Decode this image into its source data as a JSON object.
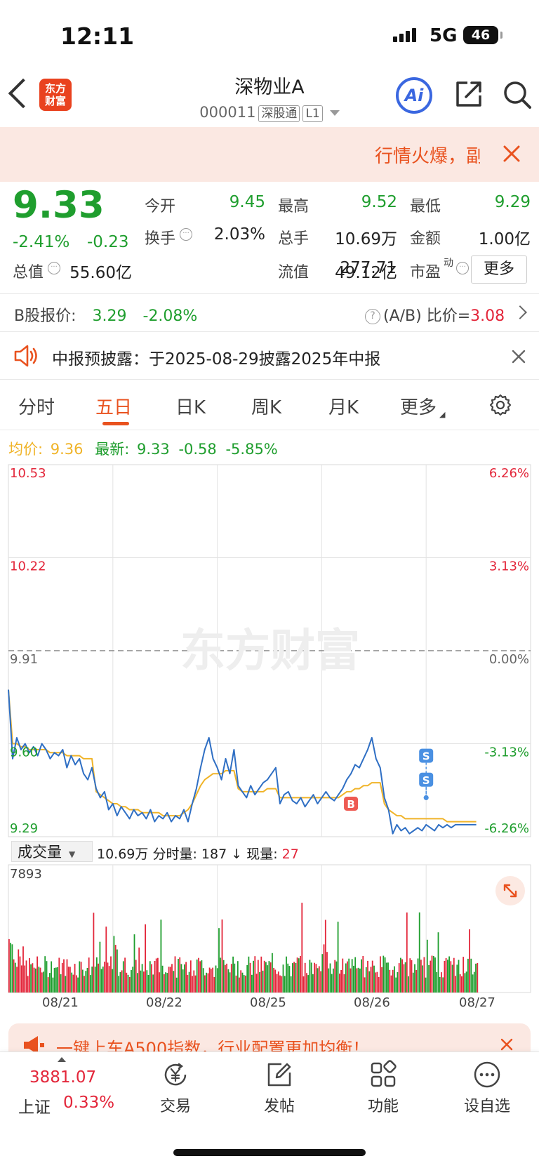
{
  "status_bar": {
    "time": "12:11",
    "network": "5G",
    "battery": "46"
  },
  "header": {
    "logo": "东方财富",
    "title": "深物业A",
    "code": "000011",
    "tag1": "深股通",
    "tag2": "L1",
    "ai_label": "Ai"
  },
  "hot_banner": {
    "text": "行情火爆，副"
  },
  "quote": {
    "price": "9.33",
    "pct": "-2.41%",
    "change": "-0.23",
    "fields": [
      {
        "label": "今开",
        "value": "9.45",
        "color": "#1f9e2e"
      },
      {
        "label": "最高",
        "value": "9.52",
        "color": "#1f9e2e"
      },
      {
        "label": "最低",
        "value": "9.29",
        "color": "#1f9e2e"
      },
      {
        "label": "换手",
        "value": "2.03%",
        "color": "#222222"
      },
      {
        "label": "总手",
        "value": "10.69万",
        "color": "#222222"
      },
      {
        "label": "金额",
        "value": "1.00亿",
        "color": "#222222"
      },
      {
        "label": "总值",
        "value": "55.60亿",
        "color": "#222222"
      },
      {
        "label": "流值",
        "value": "49.12亿",
        "color": "#222222"
      },
      {
        "label": "市盈",
        "sup": "动",
        "value": "277.71",
        "color": "#222222"
      }
    ],
    "more_label": "更多"
  },
  "b_share": {
    "label": "B股报价:",
    "price": "3.29",
    "pct": "-2.08%",
    "ratio_label": "(A/B) 比价=",
    "ratio_value": "3.08"
  },
  "notice": {
    "text": "中报预披露：于2025-08-29披露2025年中报"
  },
  "tabs": [
    {
      "label": "分时",
      "active": false
    },
    {
      "label": "五日",
      "active": true
    },
    {
      "label": "日K",
      "active": false
    },
    {
      "label": "周K",
      "active": false
    },
    {
      "label": "月K",
      "active": false
    },
    {
      "label": "更多",
      "active": false
    }
  ],
  "chart_header": {
    "avg_label": "均价:",
    "avg_value": "9.36",
    "latest_label": "最新:",
    "latest_value": "9.33",
    "latest_change": "-0.58",
    "latest_pct": "-5.85%"
  },
  "chart_data": {
    "type": "line",
    "title": "",
    "watermark": "东方财富",
    "y_ticks_left": [
      "10.53",
      "10.22",
      "9.91",
      "9.60",
      "9.29"
    ],
    "y_ticks_right": [
      "6.26%",
      "3.13%",
      "0.00%",
      "-3.13%",
      "-6.26%"
    ],
    "ylim": [
      9.29,
      10.53
    ],
    "prev_close": 9.91,
    "days": [
      "08/21",
      "08/22",
      "08/25",
      "08/26",
      "08/27"
    ],
    "x": [
      0,
      0.04,
      0.08,
      0.12,
      0.16,
      0.2,
      0.24,
      0.28,
      0.32,
      0.36,
      0.4,
      0.44,
      0.48,
      0.52,
      0.56,
      0.6,
      0.64,
      0.68,
      0.72,
      0.76,
      0.8,
      0.84,
      0.88,
      0.92,
      0.96,
      1.0,
      1.04,
      1.08,
      1.12,
      1.16,
      1.2,
      1.24,
      1.28,
      1.32,
      1.36,
      1.4,
      1.44,
      1.48,
      1.52,
      1.56,
      1.6,
      1.64,
      1.68,
      1.72,
      1.76,
      1.8,
      1.84,
      1.88,
      1.92,
      1.96,
      2.0,
      2.04,
      2.08,
      2.12,
      2.16,
      2.2,
      2.24,
      2.28,
      2.32,
      2.36,
      2.4,
      2.44,
      2.48,
      2.52,
      2.56,
      2.6,
      2.64,
      2.68,
      2.72,
      2.76,
      2.8,
      2.84,
      2.88,
      2.92,
      2.96,
      3.0,
      3.04,
      3.08,
      3.12,
      3.16,
      3.2,
      3.24,
      3.28,
      3.32,
      3.36,
      3.4,
      3.44,
      3.48,
      3.52,
      3.56,
      3.6,
      3.64,
      3.68,
      3.72,
      3.76,
      3.8,
      3.84,
      3.88,
      3.92,
      3.96,
      4.0,
      4.04,
      4.08,
      4.12,
      4.16,
      4.2,
      4.24,
      4.28,
      4.32,
      4.36,
      4.4,
      4.44,
      4.48
    ],
    "series": [
      {
        "name": "最新",
        "color": "#2f6fc4",
        "values": [
          9.78,
          9.55,
          9.62,
          9.58,
          9.6,
          9.57,
          9.59,
          9.56,
          9.6,
          9.58,
          9.55,
          9.57,
          9.56,
          9.58,
          9.52,
          9.56,
          9.53,
          9.55,
          9.5,
          9.48,
          9.52,
          9.45,
          9.42,
          9.44,
          9.38,
          9.4,
          9.36,
          9.39,
          9.37,
          9.35,
          9.38,
          9.36,
          9.37,
          9.35,
          9.38,
          9.34,
          9.36,
          9.35,
          9.37,
          9.34,
          9.36,
          9.35,
          9.38,
          9.34,
          9.4,
          9.45,
          9.52,
          9.58,
          9.62,
          9.55,
          9.52,
          9.48,
          9.55,
          9.5,
          9.58,
          9.46,
          9.44,
          9.42,
          9.46,
          9.43,
          9.45,
          9.47,
          9.48,
          9.5,
          9.52,
          9.4,
          9.43,
          9.44,
          9.41,
          9.4,
          9.42,
          9.39,
          9.41,
          9.43,
          9.4,
          9.42,
          9.44,
          9.42,
          9.41,
          9.43,
          9.45,
          9.48,
          9.5,
          9.53,
          9.52,
          9.55,
          9.58,
          9.62,
          9.55,
          9.52,
          9.42,
          9.38,
          9.3,
          9.33,
          9.31,
          9.32,
          9.3,
          9.31,
          9.32,
          9.31,
          9.33,
          9.32,
          9.31,
          9.33,
          9.32,
          9.33,
          9.32,
          9.33,
          9.33,
          9.33,
          9.33,
          9.33,
          9.33
        ]
      },
      {
        "name": "均价",
        "color": "#f0b429",
        "values": [
          9.78,
          9.6,
          9.6,
          9.59,
          9.59,
          9.58,
          9.58,
          9.58,
          9.58,
          9.58,
          9.57,
          9.57,
          9.57,
          9.57,
          9.56,
          9.56,
          9.56,
          9.56,
          9.55,
          9.55,
          9.55,
          9.44,
          9.43,
          9.42,
          9.41,
          9.4,
          9.4,
          9.39,
          9.39,
          9.38,
          9.38,
          9.38,
          9.37,
          9.37,
          9.37,
          9.37,
          9.37,
          9.36,
          9.36,
          9.36,
          9.36,
          9.36,
          9.37,
          9.38,
          9.4,
          9.43,
          9.46,
          9.48,
          9.49,
          9.5,
          9.5,
          9.5,
          9.51,
          9.51,
          9.51,
          9.45,
          9.44,
          9.44,
          9.44,
          9.44,
          9.44,
          9.44,
          9.45,
          9.45,
          9.45,
          9.42,
          9.42,
          9.42,
          9.42,
          9.42,
          9.42,
          9.42,
          9.42,
          9.42,
          9.42,
          9.42,
          9.42,
          9.42,
          9.42,
          9.42,
          9.43,
          9.44,
          9.44,
          9.45,
          9.45,
          9.46,
          9.46,
          9.47,
          9.47,
          9.47,
          9.4,
          9.38,
          9.37,
          9.36,
          9.36,
          9.35,
          9.35,
          9.35,
          9.35,
          9.35,
          9.35,
          9.35,
          9.35,
          9.35,
          9.35,
          9.34,
          9.34,
          9.34,
          9.34,
          9.34,
          9.34,
          9.34,
          9.34
        ]
      }
    ],
    "markers": [
      {
        "label": "B",
        "x": 3.28,
        "y": 9.4,
        "color": "#ee5a52"
      },
      {
        "label": "S",
        "x": 4.0,
        "y": 9.56,
        "color": "#4a90e2"
      },
      {
        "label": "S",
        "x": 4.0,
        "y": 9.48,
        "color": "#4a90e2"
      }
    ],
    "grid": true
  },
  "volume": {
    "label": "成交量",
    "total": "10.69万",
    "fenshi_label": "分时量:",
    "fenshi_value": "187",
    "current_label": "现量:",
    "current_value": "27",
    "max": "7893"
  },
  "promo": {
    "text": "一键上车A500指数，行业配置更加均衡！"
  },
  "bottom_nav": {
    "index_value": "3881.07",
    "index_name": "上证",
    "index_pct": "0.33%",
    "items": [
      {
        "label": "交易",
        "icon": "yen-icon"
      },
      {
        "label": "发帖",
        "icon": "edit-icon"
      },
      {
        "label": "功能",
        "icon": "grid-icon"
      },
      {
        "label": "设自选",
        "icon": "more-icon"
      }
    ]
  }
}
